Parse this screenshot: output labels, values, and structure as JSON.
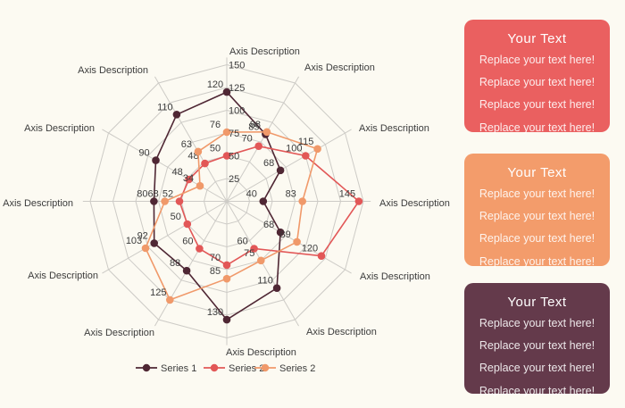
{
  "background": "#FCFAF2",
  "chart_data": {
    "type": "radar",
    "title": "",
    "axes": [
      "Axis Description",
      "Axis Description",
      "Axis Description",
      "Axis Description",
      "Axis Description",
      "Axis Description",
      "Axis Description",
      "Axis Description",
      "Axis Description",
      "Axis Description",
      "Axis Description",
      "Axis Description"
    ],
    "ticks": [
      25,
      50,
      75,
      100,
      125,
      150
    ],
    "ylim": [
      0,
      150
    ],
    "grid": true,
    "grid_shape": "polygon",
    "grid_color": "#CDCBC6",
    "text_color": "#3C3C3C",
    "legend_position": "bottom",
    "series": [
      {
        "name": "Series 1",
        "color": "#4F2734",
        "values": [
          120,
          85,
          68,
          40,
          68,
          110,
          130,
          88,
          92,
          80,
          90,
          110
        ]
      },
      {
        "name": "Series 2",
        "color": "#E25757",
        "values": [
          50,
          70,
          100,
          145,
          120,
          60,
          70,
          60,
          50,
          52,
          48,
          48
        ]
      },
      {
        "name": "Series 2",
        "color": "#F0996A",
        "values": [
          76,
          88,
          115,
          83,
          89,
          75,
          85,
          125,
          103,
          68,
          34,
          63
        ]
      }
    ]
  },
  "legend": {
    "items": [
      {
        "label": "Series 1",
        "color": "#4F2734"
      },
      {
        "label": "Series 2",
        "color": "#E25757"
      },
      {
        "label": "Series 2",
        "color": "#F0996A"
      }
    ]
  },
  "panels": [
    {
      "title": "Your Text",
      "bg": "#EA6060",
      "items": [
        "Replace your text here!",
        "Replace your text here!",
        "Replace your text here!",
        "Replace your text here!"
      ]
    },
    {
      "title": "Your Text",
      "bg": "#F39C6B",
      "items": [
        "Replace your text here!",
        "Replace your text here!",
        "Replace your text here!",
        "Replace your text here!"
      ]
    },
    {
      "title": "Your Text",
      "bg": "#643A4B",
      "items": [
        "Replace your text here!",
        "Replace your text here!",
        "Replace your text here!",
        "Replace your text here!"
      ]
    }
  ]
}
